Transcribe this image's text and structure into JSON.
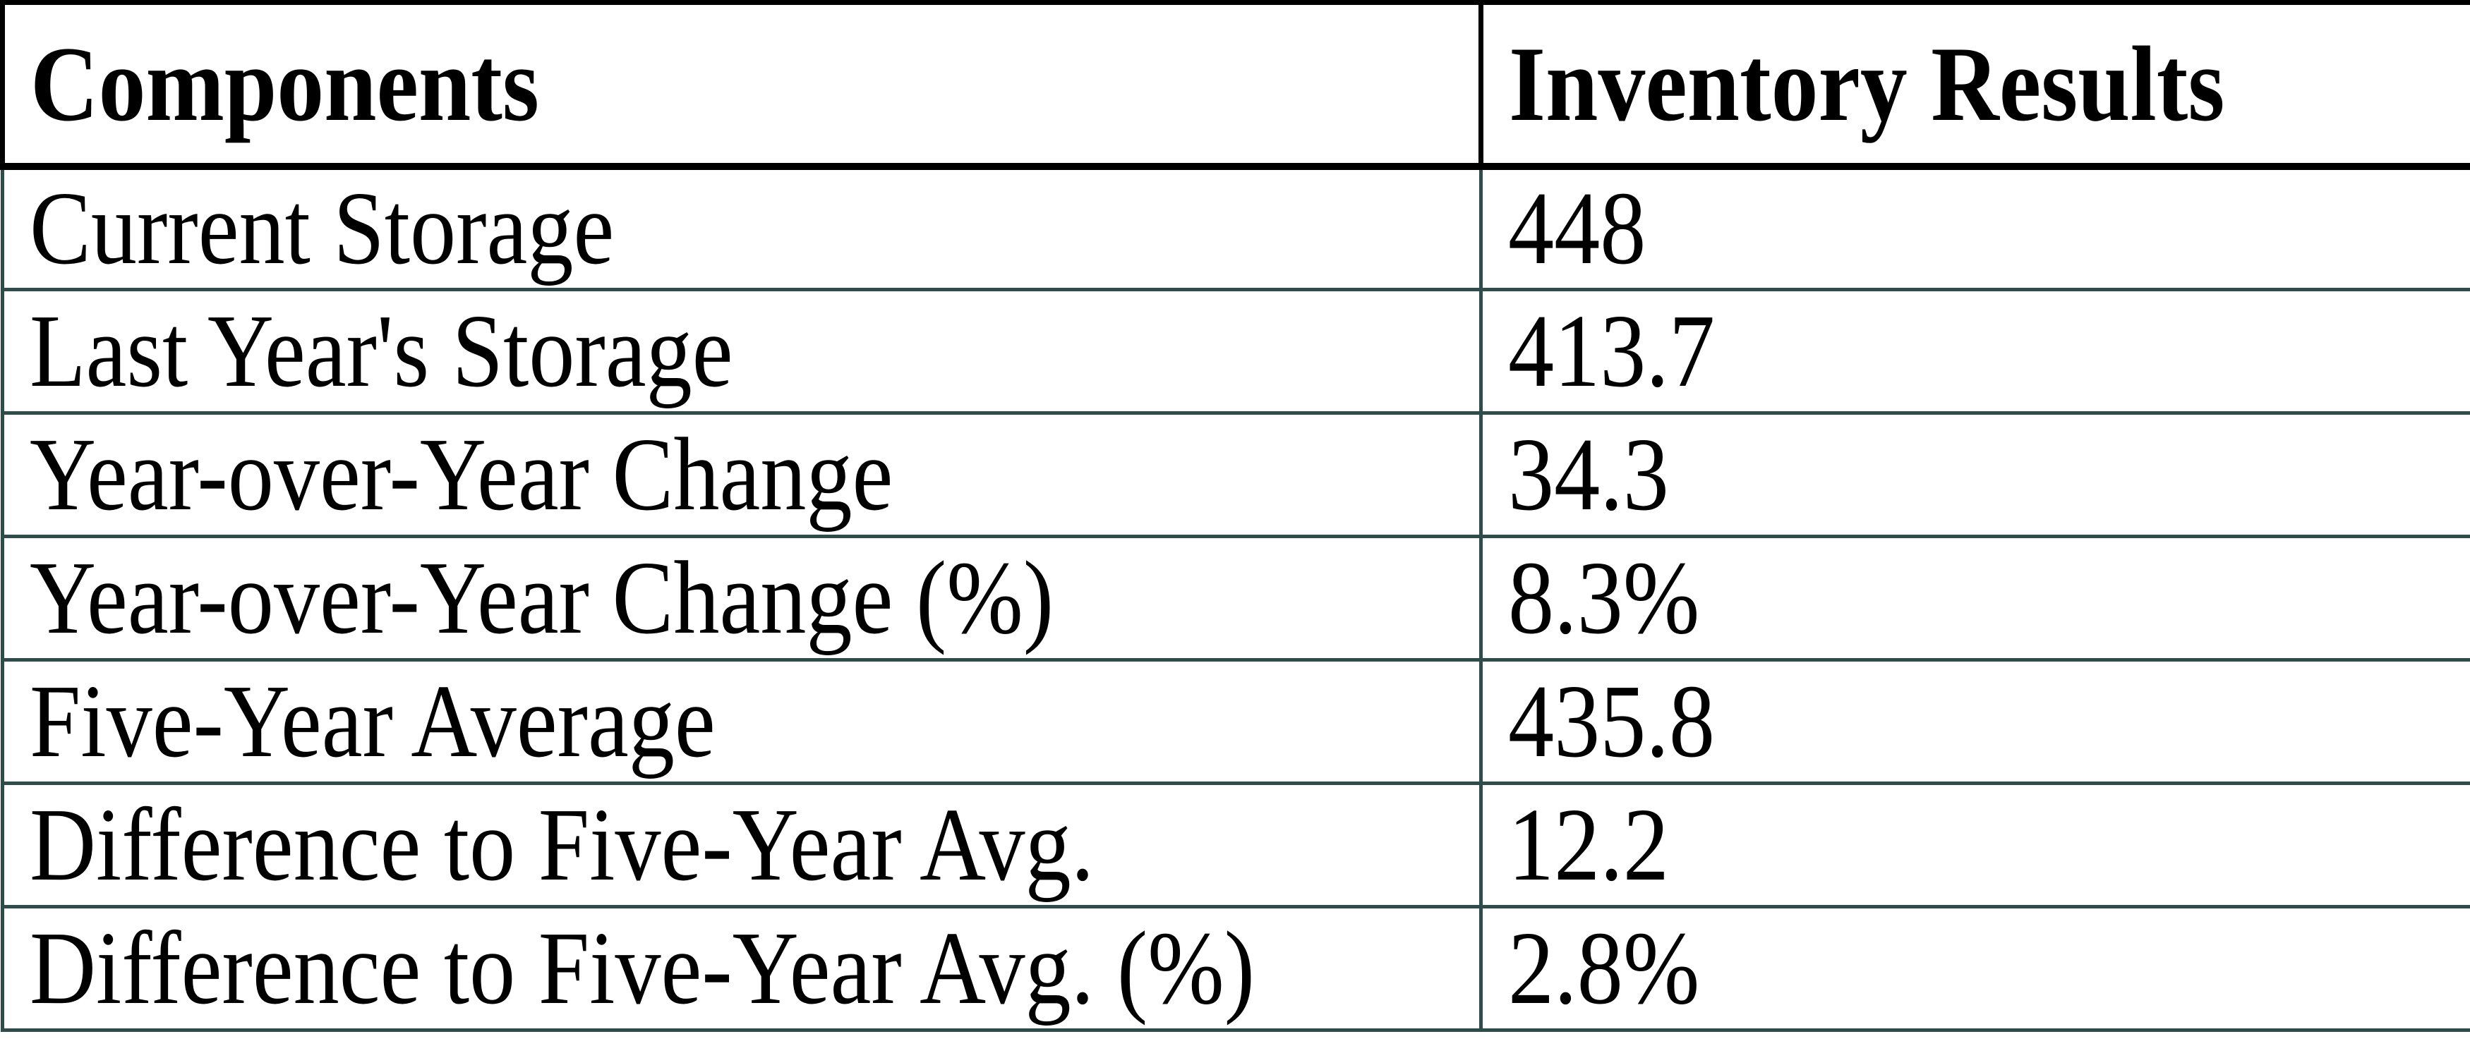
{
  "table": {
    "columns": [
      "Components",
      "Inventory Results"
    ],
    "rows": [
      {
        "label": "Current Storage",
        "value": "448"
      },
      {
        "label": "Last Year's Storage",
        "value": "413.7"
      },
      {
        "label": "Year-over-Year Change",
        "value": "34.3"
      },
      {
        "label": "Year-over-Year Change (%)",
        "value": "8.3%"
      },
      {
        "label": "Five-Year Average",
        "value": "435.8"
      },
      {
        "label": "Difference to Five-Year Avg.",
        "value": "12.2"
      },
      {
        "label": "Difference to Five-Year Avg. (%)",
        "value": "2.8%"
      }
    ]
  },
  "chart_data": {
    "type": "table",
    "title": "",
    "columns": [
      "Components",
      "Inventory Results"
    ],
    "rows": [
      [
        "Current Storage",
        448
      ],
      [
        "Last Year's Storage",
        413.7
      ],
      [
        "Year-over-Year Change",
        34.3
      ],
      [
        "Year-over-Year Change (%)",
        "8.3%"
      ],
      [
        "Five-Year Average",
        435.8
      ],
      [
        "Difference to Five-Year Avg.",
        12.2
      ],
      [
        "Difference to Five-Year Avg. (%)",
        "2.8%"
      ]
    ]
  },
  "theme": {
    "header_border_color": "#000000",
    "body_border_color": "#2E4C49",
    "text_color": "#000000",
    "background": "#FFFFFF"
  }
}
